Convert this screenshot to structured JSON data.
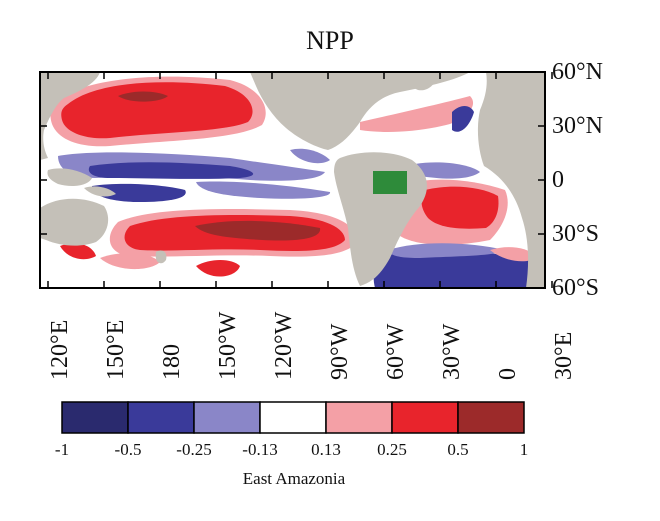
{
  "title": "NPP",
  "colors": {
    "land": "#c4c0b8",
    "ocean_neutral": "#ffffff",
    "region_box": "#2e8b3a",
    "frame": "#000000"
  },
  "lat_labels": [
    "60°N",
    "30°N",
    "0",
    "30°S",
    "60°S"
  ],
  "lon_labels": [
    "120°E",
    "150°E",
    "180",
    "150°W",
    "120°W",
    "90°W",
    "60°W",
    "30°W",
    "0",
    "30°E"
  ],
  "colorbar": {
    "levels": [
      "-1",
      "-0.5",
      "-0.25",
      "-0.13",
      "0.13",
      "0.25",
      "0.5",
      "1"
    ],
    "colors": [
      "#2a2a6e",
      "#3a3a9a",
      "#8a86c8",
      "#ffffff",
      "#f4a0a6",
      "#e8242c",
      "#9c2a2a"
    ],
    "title": "East Amazonia"
  }
}
